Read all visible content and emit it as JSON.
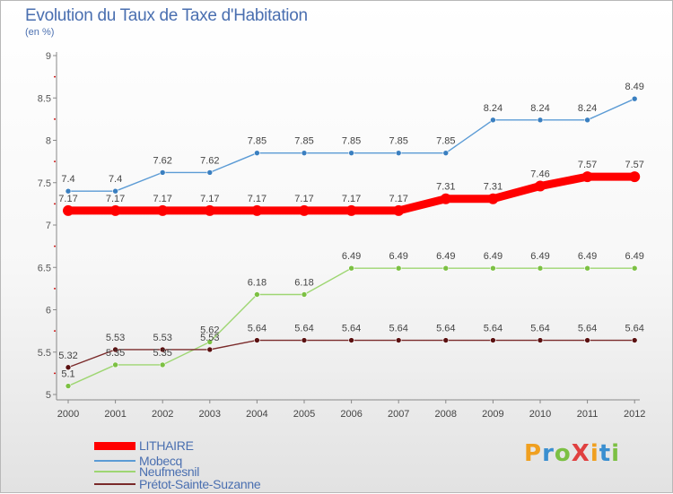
{
  "title": "Evolution du Taux de Taxe d'Habitation",
  "unit_label": "(en %)",
  "logo": {
    "letters": [
      {
        "char": "P",
        "color": "#f0a020"
      },
      {
        "char": "r",
        "color": "#3a8fd0"
      },
      {
        "char": "o",
        "color": "#7cc043"
      },
      {
        "char": "X",
        "color": "#e04040"
      },
      {
        "char": "i",
        "color": "#f0a020"
      },
      {
        "char": "t",
        "color": "#3a8fd0"
      },
      {
        "char": "i",
        "color": "#7cc043"
      }
    ]
  },
  "chart_data": {
    "type": "line",
    "title": "Evolution du Taux de Taxe d'Habitation",
    "ylabel": "(en %)",
    "xlabel": "",
    "x": [
      "2000",
      "2001",
      "2002",
      "2003",
      "2004",
      "2005",
      "2006",
      "2007",
      "2008",
      "2009",
      "2010",
      "2011",
      "2012"
    ],
    "ylim": [
      5,
      9
    ],
    "yticks": [
      "5",
      "5.5",
      "6",
      "6.5",
      "7",
      "7.5",
      "8",
      "8.5",
      "9"
    ],
    "grid": false,
    "legend_position": "bottom-left",
    "series": [
      {
        "name": "LITHAIRE",
        "color": "#ff0000",
        "marker_color": "#e00000",
        "emphasis": true,
        "values": [
          7.17,
          7.17,
          7.17,
          7.17,
          7.17,
          7.17,
          7.17,
          7.17,
          7.31,
          7.31,
          7.46,
          7.57,
          7.57
        ],
        "labels": [
          "7.17",
          "7.17",
          "7.17",
          "7.17",
          "7.17",
          "7.17",
          "7.17",
          "7.17",
          "7.31",
          "7.31",
          "7.46",
          "7.57",
          "7.57"
        ]
      },
      {
        "name": "Mobecq",
        "color": "#5b9bd5",
        "marker_color": "#3a7fc0",
        "values": [
          7.4,
          7.4,
          7.62,
          7.62,
          7.85,
          7.85,
          7.85,
          7.85,
          7.85,
          8.24,
          8.24,
          8.24,
          8.49
        ],
        "labels": [
          "7.4",
          "7.4",
          "7.62",
          "7.62",
          "7.85",
          "7.85",
          "7.85",
          "7.85",
          "7.85",
          "8.24",
          "8.24",
          "8.24",
          "8.49"
        ]
      },
      {
        "name": "Neufmesnil",
        "color": "#9ed672",
        "marker_color": "#7cc043",
        "values": [
          5.1,
          5.35,
          5.35,
          5.62,
          6.18,
          6.18,
          6.49,
          6.49,
          6.49,
          6.49,
          6.49,
          6.49,
          6.49
        ],
        "labels": [
          "5.1",
          "5.35",
          "5.35",
          "5.62",
          "6.18",
          "6.18",
          "6.49",
          "6.49",
          "6.49",
          "6.49",
          "6.49",
          "6.49",
          "6.49"
        ]
      },
      {
        "name": "Prétot-Sainte-Suzanne",
        "color": "#7a2a2a",
        "marker_color": "#5a1010",
        "values": [
          5.32,
          5.53,
          5.53,
          5.53,
          5.64,
          5.64,
          5.64,
          5.64,
          5.64,
          5.64,
          5.64,
          5.64,
          5.64
        ],
        "labels": [
          "5.32",
          "5.53",
          "5.53",
          "5.53",
          "5.64",
          "5.64",
          "5.64",
          "5.64",
          "5.64",
          "5.64",
          "5.64",
          "5.64",
          "5.64"
        ]
      }
    ]
  }
}
